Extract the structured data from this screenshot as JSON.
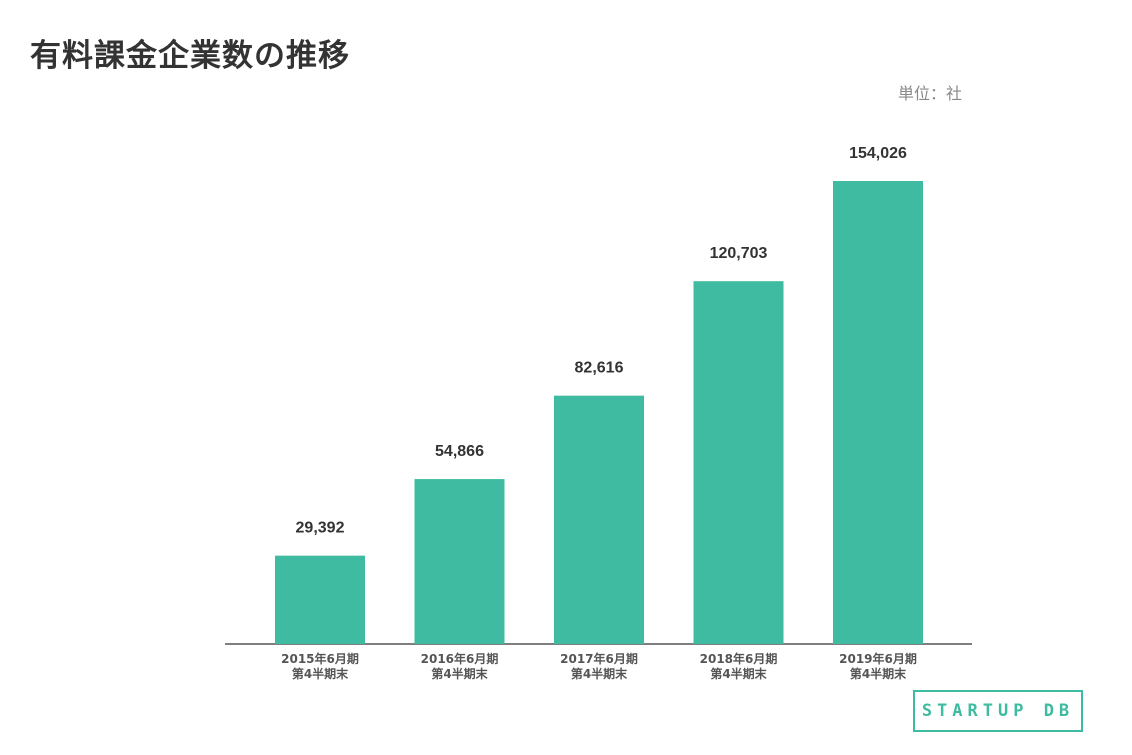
{
  "title": "有料課金企業数の推移",
  "unit_label": "単位：社",
  "logo_text": "STARTUP DB",
  "colors": {
    "bar": "#3fbba1",
    "axis": "#555555",
    "title": "#333333"
  },
  "chart_data": {
    "type": "bar",
    "title": "有料課金企業数の推移",
    "categories": [
      [
        "2015年6月期",
        "第4半期末"
      ],
      [
        "2016年6月期",
        "第4半期末"
      ],
      [
        "2017年6月期",
        "第4半期末"
      ],
      [
        "2018年6月期",
        "第4半期末"
      ],
      [
        "2019年6月期",
        "第4半期末"
      ]
    ],
    "values": [
      29392,
      54866,
      82616,
      120703,
      154026
    ],
    "value_labels": [
      "29,392",
      "54,866",
      "82,616",
      "120,703",
      "154,026"
    ],
    "unit": "社",
    "ylim": [
      0,
      160000
    ],
    "grid": false,
    "legend": "none"
  }
}
